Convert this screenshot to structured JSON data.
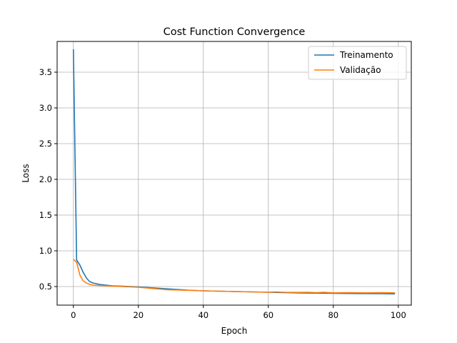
{
  "chart_data": {
    "type": "line",
    "title": "Cost Function Convergence",
    "xlabel": "Epoch",
    "ylabel": "Loss",
    "xlim": [
      -5,
      104
    ],
    "ylim": [
      0.24,
      3.93
    ],
    "x_ticks": [
      0,
      20,
      40,
      60,
      80,
      100
    ],
    "y_ticks": [
      0.5,
      1.0,
      1.5,
      2.0,
      2.5,
      3.0,
      3.5
    ],
    "x_tick_labels": [
      "0",
      "20",
      "40",
      "60",
      "80",
      "100"
    ],
    "y_tick_labels": [
      "0.5",
      "1.0",
      "1.5",
      "2.0",
      "2.5",
      "3.0",
      "3.5"
    ],
    "grid": true,
    "legend_position": "top-right",
    "series": [
      {
        "name": "Treinamento",
        "color": "#1f77b4",
        "x": [
          0,
          1,
          2,
          3,
          4,
          5,
          6,
          8,
          10,
          12,
          15,
          20,
          25,
          30,
          35,
          40,
          45,
          50,
          55,
          60,
          65,
          70,
          75,
          80,
          85,
          90,
          95,
          99
        ],
        "y": [
          3.82,
          0.87,
          0.8,
          0.7,
          0.62,
          0.57,
          0.55,
          0.53,
          0.52,
          0.51,
          0.505,
          0.495,
          0.48,
          0.465,
          0.45,
          0.44,
          0.435,
          0.43,
          0.425,
          0.42,
          0.415,
          0.41,
          0.408,
          0.405,
          0.403,
          0.402,
          0.4,
          0.398
        ]
      },
      {
        "name": "Validação",
        "color": "#ff7f0e",
        "x": [
          0,
          1,
          2,
          3,
          4,
          5,
          6,
          8,
          10,
          12,
          15,
          20,
          25,
          29,
          33,
          37,
          40,
          45,
          50,
          55,
          60,
          62,
          65,
          70,
          72,
          75,
          77,
          80,
          85,
          90,
          95,
          99
        ],
        "y": [
          0.88,
          0.84,
          0.66,
          0.58,
          0.55,
          0.53,
          0.52,
          0.515,
          0.51,
          0.505,
          0.5,
          0.49,
          0.47,
          0.455,
          0.45,
          0.445,
          0.44,
          0.435,
          0.43,
          0.425,
          0.42,
          0.425,
          0.42,
          0.418,
          0.42,
          0.415,
          0.42,
          0.412,
          0.415,
          0.412,
          0.415,
          0.412
        ]
      }
    ]
  }
}
